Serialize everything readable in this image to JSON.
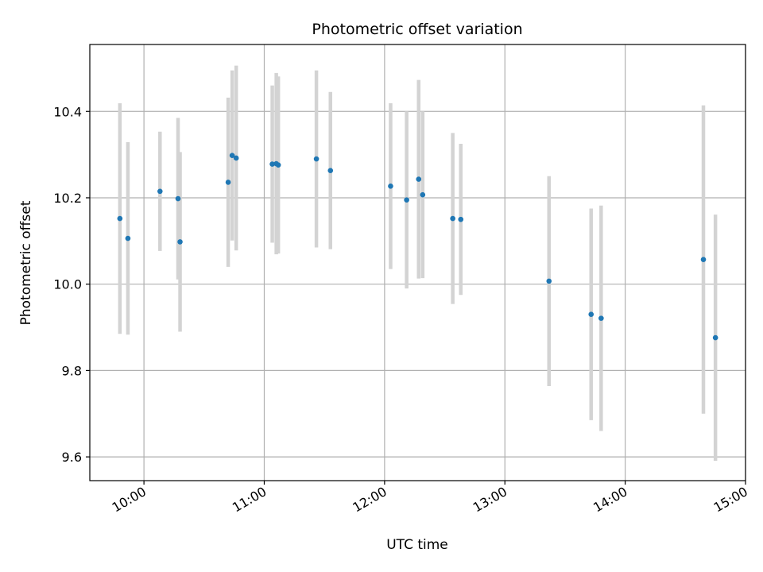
{
  "chart_data": {
    "type": "scatter",
    "title": "Photometric offset variation",
    "xlabel": "UTC time",
    "ylabel": "Photometric offset",
    "x_axis": "time (UTC, hours)",
    "xlim": [
      "09:33",
      "15:00"
    ],
    "ylim": [
      9.545,
      10.555
    ],
    "x_ticks": [
      "10:00",
      "11:00",
      "12:00",
      "13:00",
      "14:00",
      "15:00"
    ],
    "y_ticks": [
      9.6,
      9.8,
      10.0,
      10.2,
      10.4
    ],
    "y_tick_labels": [
      "9.6",
      "9.8",
      "10.0",
      "10.2",
      "10.4"
    ],
    "grid": true,
    "colors": {
      "points": "#1f77b4",
      "error_bars": "#d3d3d3",
      "grid": "#b0b0b0"
    },
    "points": [
      {
        "x": "09:48",
        "y": 10.152,
        "err": 0.267
      },
      {
        "x": "09:52",
        "y": 10.106,
        "err": 0.223
      },
      {
        "x": "10:08",
        "y": 10.215,
        "err": 0.138
      },
      {
        "x": "10:17",
        "y": 10.198,
        "err": 0.187
      },
      {
        "x": "10:18",
        "y": 10.098,
        "err": 0.208
      },
      {
        "x": "10:42",
        "y": 10.236,
        "err": 0.196
      },
      {
        "x": "10:44",
        "y": 10.298,
        "err": 0.197
      },
      {
        "x": "10:46",
        "y": 10.292,
        "err": 0.214
      },
      {
        "x": "11:04",
        "y": 10.278,
        "err": 0.182
      },
      {
        "x": "11:06",
        "y": 10.279,
        "err": 0.21
      },
      {
        "x": "11:07",
        "y": 10.276,
        "err": 0.205
      },
      {
        "x": "11:26",
        "y": 10.29,
        "err": 0.205
      },
      {
        "x": "11:33",
        "y": 10.263,
        "err": 0.182
      },
      {
        "x": "12:03",
        "y": 10.227,
        "err": 0.192
      },
      {
        "x": "12:11",
        "y": 10.195,
        "err": 0.205
      },
      {
        "x": "12:17",
        "y": 10.243,
        "err": 0.23
      },
      {
        "x": "12:19",
        "y": 10.207,
        "err": 0.193
      },
      {
        "x": "12:34",
        "y": 10.152,
        "err": 0.198
      },
      {
        "x": "12:38",
        "y": 10.15,
        "err": 0.175
      },
      {
        "x": "13:22",
        "y": 10.007,
        "err": 0.243
      },
      {
        "x": "13:43",
        "y": 9.93,
        "err": 0.245
      },
      {
        "x": "13:48",
        "y": 9.921,
        "err": 0.261
      },
      {
        "x": "14:39",
        "y": 10.057,
        "err": 0.357
      },
      {
        "x": "14:45",
        "y": 9.876,
        "err": 0.285
      }
    ]
  }
}
